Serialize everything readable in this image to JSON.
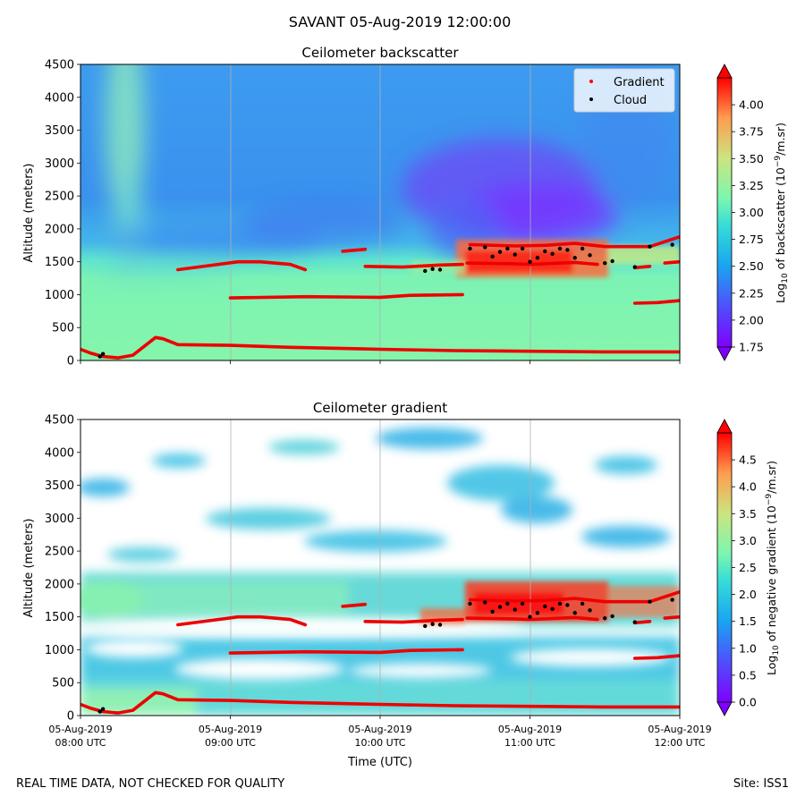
{
  "figure": {
    "suptitle": "SAVANT 05-Aug-2019 12:00:00",
    "footer_left": "REAL TIME DATA, NOT CHECKED FOR QUALITY",
    "footer_right": "Site: ISS1"
  },
  "chart_data": [
    {
      "type": "heatmap",
      "title": "Ceilometer backscatter",
      "ylabel": "Altitude (meters)",
      "xlabel": "",
      "ylim": [
        0,
        4500
      ],
      "yticks": [
        0,
        500,
        1000,
        1500,
        2000,
        2500,
        3000,
        3500,
        4000,
        4500
      ],
      "x_tick_labels_shown": false,
      "grid": "vertical lines at each hour",
      "legend": {
        "location": "top-right",
        "entries": [
          {
            "label": "Gradient",
            "color": "#ff0000"
          },
          {
            "label": "Cloud",
            "color": "#000000"
          }
        ]
      },
      "colorbar": {
        "label_prefix": "Log",
        "label_sub": "10",
        "label_mid": " of backscatter (10",
        "label_sup": "−9",
        "label_suffix": "/m.sr)",
        "range": [
          1.75,
          4.25
        ],
        "ticks": [
          "1.75",
          "2.00",
          "2.25",
          "2.50",
          "2.75",
          "3.00",
          "3.25",
          "3.50",
          "3.75",
          "4.00"
        ],
        "tick_values": [
          1.75,
          2.0,
          2.25,
          2.5,
          2.75,
          3.0,
          3.25,
          3.5,
          3.75,
          4.0
        ],
        "colormap": "rainbow"
      }
    },
    {
      "type": "heatmap",
      "title": "Ceilometer gradient",
      "ylabel": "Altitude (meters)",
      "xlabel": "Time (UTC)",
      "ylim": [
        0,
        4500
      ],
      "yticks": [
        0,
        500,
        1000,
        1500,
        2000,
        2500,
        3000,
        3500,
        4000,
        4500
      ],
      "x_tick_labels_shown": true,
      "x_ticks_hours": [
        8,
        9,
        10,
        11,
        12
      ],
      "x_tick_labels": [
        {
          "line1": "05-Aug-2019",
          "line2": "08:00 UTC"
        },
        {
          "line1": "05-Aug-2019",
          "line2": "09:00 UTC"
        },
        {
          "line1": "05-Aug-2019",
          "line2": "10:00 UTC"
        },
        {
          "line1": "05-Aug-2019",
          "line2": "11:00 UTC"
        },
        {
          "line1": "05-Aug-2019",
          "line2": "12:00 UTC"
        }
      ],
      "grid": "vertical lines at each hour",
      "colorbar": {
        "label_prefix": "Log",
        "label_sub": "10",
        "label_mid": " of negative gradient (10",
        "label_sup": "−9",
        "label_suffix": "/m.sr)",
        "range": [
          0.0,
          5.0
        ],
        "ticks": [
          "0.0",
          "0.5",
          "1.0",
          "1.5",
          "2.0",
          "2.5",
          "3.0",
          "3.5",
          "4.0",
          "4.5"
        ],
        "tick_values": [
          0.0,
          0.5,
          1.0,
          1.5,
          2.0,
          2.5,
          3.0,
          3.5,
          4.0,
          4.5
        ],
        "colormap": "rainbow"
      }
    }
  ],
  "overlays": {
    "x_range_hours": [
      8,
      12
    ],
    "gradient_lines": [
      [
        [
          8.0,
          170
        ],
        [
          8.07,
          110
        ],
        [
          8.15,
          60
        ],
        [
          8.25,
          40
        ],
        [
          8.35,
          80
        ],
        [
          8.45,
          260
        ],
        [
          8.5,
          350
        ],
        [
          8.55,
          330
        ],
        [
          8.65,
          240
        ],
        [
          9.0,
          230
        ],
        [
          9.4,
          200
        ],
        [
          10.0,
          170
        ],
        [
          10.5,
          150
        ],
        [
          11.0,
          140
        ],
        [
          11.5,
          130
        ],
        [
          12.0,
          130
        ]
      ],
      [
        [
          8.65,
          1380
        ],
        [
          8.85,
          1440
        ],
        [
          9.05,
          1500
        ],
        [
          9.2,
          1500
        ],
        [
          9.4,
          1460
        ],
        [
          9.5,
          1380
        ]
      ],
      [
        [
          9.0,
          950
        ],
        [
          9.5,
          970
        ],
        [
          10.0,
          960
        ],
        [
          10.2,
          990
        ],
        [
          10.55,
          1000
        ]
      ],
      [
        [
          9.75,
          1660
        ],
        [
          9.9,
          1690
        ]
      ],
      [
        [
          9.9,
          1430
        ],
        [
          10.15,
          1420
        ],
        [
          10.4,
          1450
        ],
        [
          10.55,
          1460
        ]
      ],
      [
        [
          10.58,
          1480
        ],
        [
          10.9,
          1470
        ],
        [
          11.0,
          1460
        ],
        [
          11.3,
          1490
        ],
        [
          11.45,
          1460
        ]
      ],
      [
        [
          10.6,
          1760
        ],
        [
          10.9,
          1740
        ],
        [
          11.1,
          1750
        ],
        [
          11.3,
          1780
        ],
        [
          11.5,
          1730
        ],
        [
          11.8,
          1730
        ],
        [
          12.0,
          1880
        ]
      ],
      [
        [
          11.7,
          870
        ],
        [
          11.85,
          880
        ],
        [
          12.0,
          910
        ]
      ],
      [
        [
          11.7,
          1410
        ],
        [
          11.8,
          1430
        ]
      ],
      [
        [
          11.9,
          1480
        ],
        [
          12.0,
          1500
        ]
      ]
    ],
    "cloud_points": [
      [
        8.13,
        60
      ],
      [
        8.15,
        100
      ],
      [
        10.3,
        1360
      ],
      [
        10.35,
        1390
      ],
      [
        10.4,
        1380
      ],
      [
        10.6,
        1700
      ],
      [
        10.7,
        1720
      ],
      [
        10.75,
        1580
      ],
      [
        10.8,
        1650
      ],
      [
        10.85,
        1700
      ],
      [
        10.9,
        1610
      ],
      [
        10.95,
        1700
      ],
      [
        11.0,
        1500
      ],
      [
        11.05,
        1560
      ],
      [
        11.1,
        1660
      ],
      [
        11.15,
        1620
      ],
      [
        11.2,
        1700
      ],
      [
        11.25,
        1680
      ],
      [
        11.3,
        1560
      ],
      [
        11.35,
        1700
      ],
      [
        11.4,
        1600
      ],
      [
        11.5,
        1480
      ],
      [
        11.55,
        1510
      ],
      [
        11.7,
        1420
      ],
      [
        11.8,
        1730
      ],
      [
        11.95,
        1760
      ]
    ]
  }
}
